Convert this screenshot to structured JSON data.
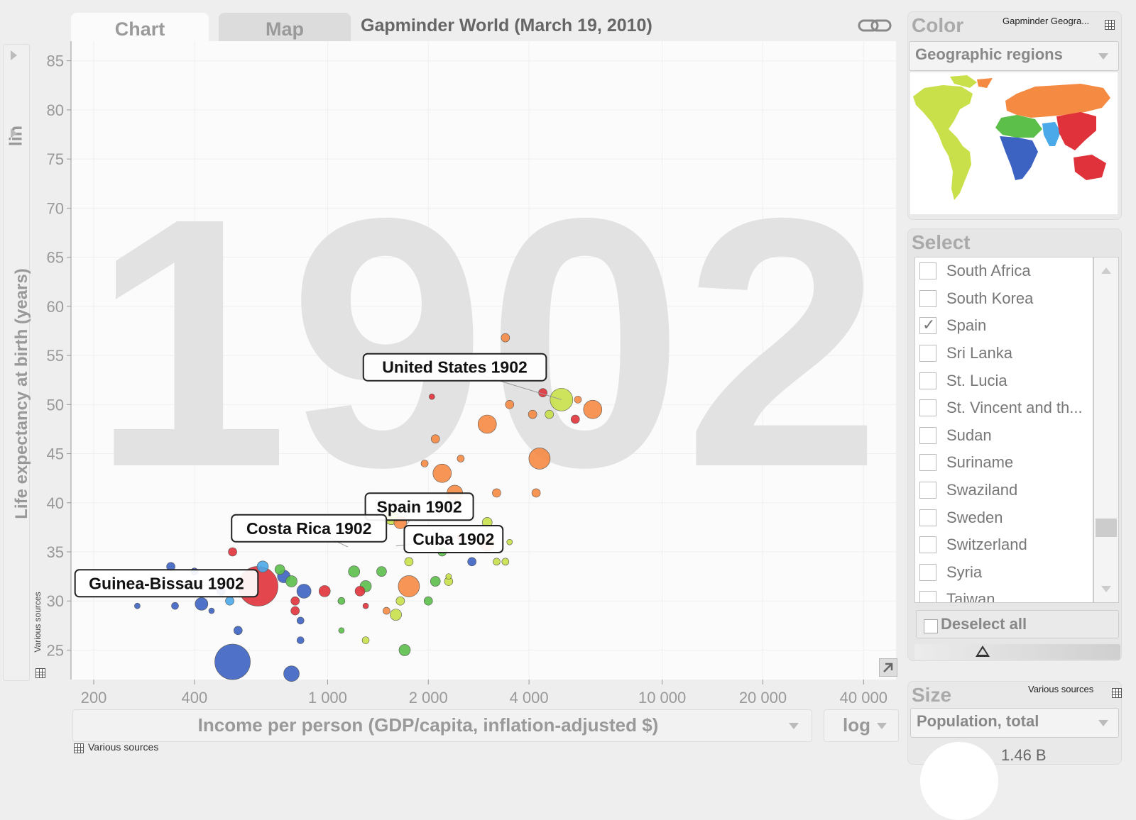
{
  "tabs": {
    "chart": "Chart",
    "map": "Map"
  },
  "title": "Gapminder World (March 19, 2010)",
  "y_axis": {
    "scale": "lin",
    "label": "Life expectancy at birth (years)",
    "source": "Various sources"
  },
  "x_axis": {
    "label": "Income per person (GDP/capita, inflation-adjusted $)",
    "scale": "log",
    "source": "Various sources"
  },
  "year_watermark": "1902",
  "color_panel": {
    "title": "Color",
    "source": "Gapminder Geogra...",
    "selected": "Geographic regions"
  },
  "select_panel": {
    "title": "Select",
    "items": [
      {
        "label": "South Africa",
        "checked": false
      },
      {
        "label": "South Korea",
        "checked": false
      },
      {
        "label": "Spain",
        "checked": true
      },
      {
        "label": "Sri Lanka",
        "checked": false
      },
      {
        "label": "St. Lucia",
        "checked": false
      },
      {
        "label": "St. Vincent and th...",
        "checked": false
      },
      {
        "label": "Sudan",
        "checked": false
      },
      {
        "label": "Suriname",
        "checked": false
      },
      {
        "label": "Swaziland",
        "checked": false
      },
      {
        "label": "Sweden",
        "checked": false
      },
      {
        "label": "Switzerland",
        "checked": false
      },
      {
        "label": "Syria",
        "checked": false
      },
      {
        "label": "Taiwan",
        "checked": false
      }
    ],
    "deselect_label": "Deselect all"
  },
  "size_panel": {
    "title": "Size",
    "source": "Various sources",
    "selected": "Population, total",
    "value": "1.46 B"
  },
  "colors": {
    "americas": "#c9e04a",
    "europe_central_asia": "#f58a42",
    "east_asia_pacific": "#e0323a",
    "sub_saharan_africa": "#3c63c2",
    "south_asia": "#4aa9e8",
    "middle_east_north_africa": "#5bbf4a"
  },
  "chart_data": {
    "type": "scatter",
    "xlim": [
      200,
      50000
    ],
    "ylim": [
      22,
      87
    ],
    "x_scale": "log",
    "x_ticks": [
      {
        "v": 200,
        "t": "200"
      },
      {
        "v": 400,
        "t": "400"
      },
      {
        "v": 1000,
        "t": "1 000"
      },
      {
        "v": 2000,
        "t": "2 000"
      },
      {
        "v": 4000,
        "t": "4 000"
      },
      {
        "v": 10000,
        "t": "10 000"
      },
      {
        "v": 20000,
        "t": "20 000"
      },
      {
        "v": 40000,
        "t": "40 000"
      }
    ],
    "y_ticks": [
      25,
      30,
      35,
      40,
      45,
      50,
      55,
      60,
      65,
      70,
      75,
      80,
      85
    ],
    "labels": [
      {
        "text": "United States 1902",
        "x": 5000,
        "y": 50.5,
        "lx": 2400,
        "ly": 53.8
      },
      {
        "text": "Spain 1902",
        "x": 1700,
        "y": 37.5,
        "lx": 1880,
        "ly": 39.6
      },
      {
        "text": "Costa Rica 1902",
        "x": 1150,
        "y": 35.5,
        "lx": 880,
        "ly": 37.4
      },
      {
        "text": "Cuba 1902",
        "x": 1600,
        "y": 35.6,
        "lx": 2380,
        "ly": 36.3
      },
      {
        "text": "Guinea-Bissau 1902",
        "x": 500,
        "y": 31.5,
        "lx": 330,
        "ly": 31.8
      }
    ],
    "points": [
      {
        "x": 620,
        "y": 31.5,
        "r": 28,
        "region": "east_asia_pacific"
      },
      {
        "x": 520,
        "y": 23.8,
        "r": 25,
        "region": "sub_saharan_africa"
      },
      {
        "x": 5000,
        "y": 50.5,
        "r": 16,
        "region": "americas"
      },
      {
        "x": 4300,
        "y": 44.5,
        "r": 15,
        "region": "europe_central_asia"
      },
      {
        "x": 2200,
        "y": 43.0,
        "r": 13,
        "region": "europe_central_asia"
      },
      {
        "x": 6200,
        "y": 49.5,
        "r": 13,
        "region": "europe_central_asia"
      },
      {
        "x": 3000,
        "y": 48.0,
        "r": 13,
        "region": "europe_central_asia"
      },
      {
        "x": 1750,
        "y": 31.5,
        "r": 15,
        "region": "europe_central_asia"
      },
      {
        "x": 2400,
        "y": 41.0,
        "r": 11,
        "region": "europe_central_asia"
      },
      {
        "x": 3000,
        "y": 35.8,
        "r": 10,
        "region": "europe_central_asia"
      },
      {
        "x": 1650,
        "y": 38.0,
        "r": 9,
        "region": "europe_central_asia"
      },
      {
        "x": 1550,
        "y": 38.5,
        "r": 10,
        "region": "americas"
      },
      {
        "x": 850,
        "y": 31.0,
        "r": 10,
        "region": "sub_saharan_africa"
      },
      {
        "x": 420,
        "y": 29.7,
        "r": 9,
        "region": "sub_saharan_africa"
      },
      {
        "x": 740,
        "y": 32.5,
        "r": 9,
        "region": "sub_saharan_africa"
      },
      {
        "x": 780,
        "y": 32.0,
        "r": 8,
        "region": "middle_east_north_africa"
      },
      {
        "x": 720,
        "y": 33.2,
        "r": 7,
        "region": "middle_east_north_africa"
      },
      {
        "x": 640,
        "y": 33.5,
        "r": 8,
        "region": "south_asia"
      },
      {
        "x": 1200,
        "y": 33.0,
        "r": 8,
        "region": "middle_east_north_africa"
      },
      {
        "x": 1300,
        "y": 31.5,
        "r": 8,
        "region": "middle_east_north_africa"
      },
      {
        "x": 2100,
        "y": 32.0,
        "r": 7,
        "region": "middle_east_north_africa"
      },
      {
        "x": 1600,
        "y": 28.6,
        "r": 8,
        "region": "americas"
      },
      {
        "x": 1700,
        "y": 25.0,
        "r": 8,
        "region": "middle_east_north_africa"
      },
      {
        "x": 980,
        "y": 31.0,
        "r": 8,
        "region": "east_asia_pacific"
      },
      {
        "x": 1250,
        "y": 31.0,
        "r": 7,
        "region": "east_asia_pacific"
      },
      {
        "x": 4400,
        "y": 51.2,
        "r": 6,
        "region": "east_asia_pacific"
      },
      {
        "x": 5500,
        "y": 48.5,
        "r": 6,
        "region": "east_asia_pacific"
      },
      {
        "x": 3400,
        "y": 56.8,
        "r": 6,
        "region": "europe_central_asia"
      },
      {
        "x": 2100,
        "y": 46.5,
        "r": 6,
        "region": "europe_central_asia"
      },
      {
        "x": 3200,
        "y": 41.0,
        "r": 6,
        "region": "europe_central_asia"
      },
      {
        "x": 4200,
        "y": 41.0,
        "r": 6,
        "region": "europe_central_asia"
      },
      {
        "x": 1950,
        "y": 44.0,
        "r": 5,
        "region": "europe_central_asia"
      },
      {
        "x": 2500,
        "y": 44.5,
        "r": 5,
        "region": "europe_central_asia"
      },
      {
        "x": 3500,
        "y": 50.0,
        "r": 6,
        "region": "europe_central_asia"
      },
      {
        "x": 4100,
        "y": 49.0,
        "r": 6,
        "region": "europe_central_asia"
      },
      {
        "x": 4600,
        "y": 49.0,
        "r": 6,
        "region": "americas"
      },
      {
        "x": 5600,
        "y": 50.5,
        "r": 5,
        "region": "europe_central_asia"
      },
      {
        "x": 2200,
        "y": 35.0,
        "r": 6,
        "region": "middle_east_north_africa"
      },
      {
        "x": 2700,
        "y": 34.0,
        "r": 6,
        "region": "sub_saharan_africa"
      },
      {
        "x": 3400,
        "y": 34.0,
        "r": 5,
        "region": "americas"
      },
      {
        "x": 3000,
        "y": 38.0,
        "r": 7,
        "region": "americas"
      },
      {
        "x": 1450,
        "y": 33.0,
        "r": 7,
        "region": "middle_east_north_africa"
      },
      {
        "x": 1750,
        "y": 34.0,
        "r": 6,
        "region": "americas"
      },
      {
        "x": 2000,
        "y": 30.0,
        "r": 6,
        "region": "middle_east_north_africa"
      },
      {
        "x": 1650,
        "y": 30.0,
        "r": 6,
        "region": "americas"
      },
      {
        "x": 1100,
        "y": 30.0,
        "r": 5,
        "region": "middle_east_north_africa"
      },
      {
        "x": 1500,
        "y": 29.0,
        "r": 5,
        "region": "europe_central_asia"
      },
      {
        "x": 1300,
        "y": 26.0,
        "r": 5,
        "region": "americas"
      },
      {
        "x": 1100,
        "y": 27.0,
        "r": 4,
        "region": "middle_east_north_africa"
      },
      {
        "x": 1300,
        "y": 29.5,
        "r": 4,
        "region": "east_asia_pacific"
      },
      {
        "x": 510,
        "y": 30.0,
        "r": 6,
        "region": "south_asia"
      },
      {
        "x": 350,
        "y": 29.5,
        "r": 5,
        "region": "sub_saharan_africa"
      },
      {
        "x": 340,
        "y": 33.5,
        "r": 6,
        "region": "sub_saharan_africa"
      },
      {
        "x": 480,
        "y": 31.0,
        "r": 6,
        "region": "sub_saharan_africa"
      },
      {
        "x": 800,
        "y": 30.0,
        "r": 6,
        "region": "east_asia_pacific"
      },
      {
        "x": 800,
        "y": 29.0,
        "r": 6,
        "region": "east_asia_pacific"
      },
      {
        "x": 830,
        "y": 28.0,
        "r": 5,
        "region": "sub_saharan_africa"
      },
      {
        "x": 540,
        "y": 27.0,
        "r": 6,
        "region": "sub_saharan_africa"
      },
      {
        "x": 830,
        "y": 26.0,
        "r": 5,
        "region": "sub_saharan_africa"
      },
      {
        "x": 780,
        "y": 22.6,
        "r": 11,
        "region": "sub_saharan_africa"
      },
      {
        "x": 520,
        "y": 35.0,
        "r": 6,
        "region": "east_asia_pacific"
      },
      {
        "x": 400,
        "y": 33.0,
        "r": 5,
        "region": "sub_saharan_africa"
      },
      {
        "x": 270,
        "y": 29.5,
        "r": 4,
        "region": "sub_saharan_africa"
      },
      {
        "x": 450,
        "y": 29.0,
        "r": 4,
        "region": "sub_saharan_africa"
      },
      {
        "x": 3200,
        "y": 34.0,
        "r": 5,
        "region": "americas"
      },
      {
        "x": 2300,
        "y": 32.5,
        "r": 4,
        "region": "americas"
      },
      {
        "x": 3500,
        "y": 36.0,
        "r": 4,
        "region": "americas"
      },
      {
        "x": 2500,
        "y": 36.5,
        "r": 5,
        "region": "east_asia_pacific"
      },
      {
        "x": 2300,
        "y": 32.0,
        "r": 6,
        "region": "americas"
      },
      {
        "x": 2050,
        "y": 50.8,
        "r": 4,
        "region": "east_asia_pacific"
      }
    ]
  }
}
